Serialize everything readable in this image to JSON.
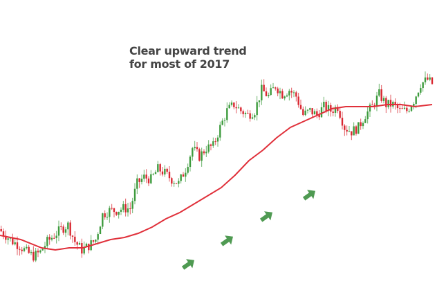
{
  "chart_data": {
    "type": "candlestick",
    "annotation": [
      "Clear upward trend",
      "for most of 2017"
    ],
    "ylim": [
      0,
      100
    ],
    "xlim": [
      0,
      63
    ],
    "grid": false,
    "colors": {
      "up": "#3d9b3d",
      "down": "#d92630",
      "moving_average": "#e0303a",
      "arrows": "#4f9a52"
    },
    "closes": [
      23,
      20,
      17,
      15,
      12,
      10,
      12,
      17,
      20,
      23,
      25,
      17,
      13,
      15,
      18,
      30,
      32,
      32,
      33,
      33,
      45,
      48,
      47,
      52,
      50,
      47,
      45,
      52,
      62,
      58,
      62,
      63,
      72,
      80,
      83,
      80,
      78,
      80,
      90,
      87,
      92,
      88,
      90,
      87,
      78,
      80,
      78,
      82,
      80,
      82,
      72,
      70,
      72,
      78,
      82,
      88,
      83,
      83,
      80,
      80,
      85,
      93,
      95,
      92
    ],
    "moving_average": {
      "x": [
        0,
        3,
        6,
        8,
        10,
        12,
        14,
        16,
        18,
        20,
        22,
        24,
        26,
        28,
        30,
        32,
        34,
        36,
        38,
        40,
        42,
        44,
        46,
        48,
        50,
        52,
        54,
        56,
        58,
        60,
        62.5
      ],
      "y": [
        20,
        18,
        14,
        13,
        14,
        14,
        16,
        18,
        19,
        21,
        24,
        28,
        31,
        35,
        39,
        43,
        49,
        56,
        61,
        67,
        72,
        75,
        78,
        81,
        82,
        82,
        82,
        83,
        83,
        82,
        83
      ]
    },
    "trend_arrows": 4
  }
}
